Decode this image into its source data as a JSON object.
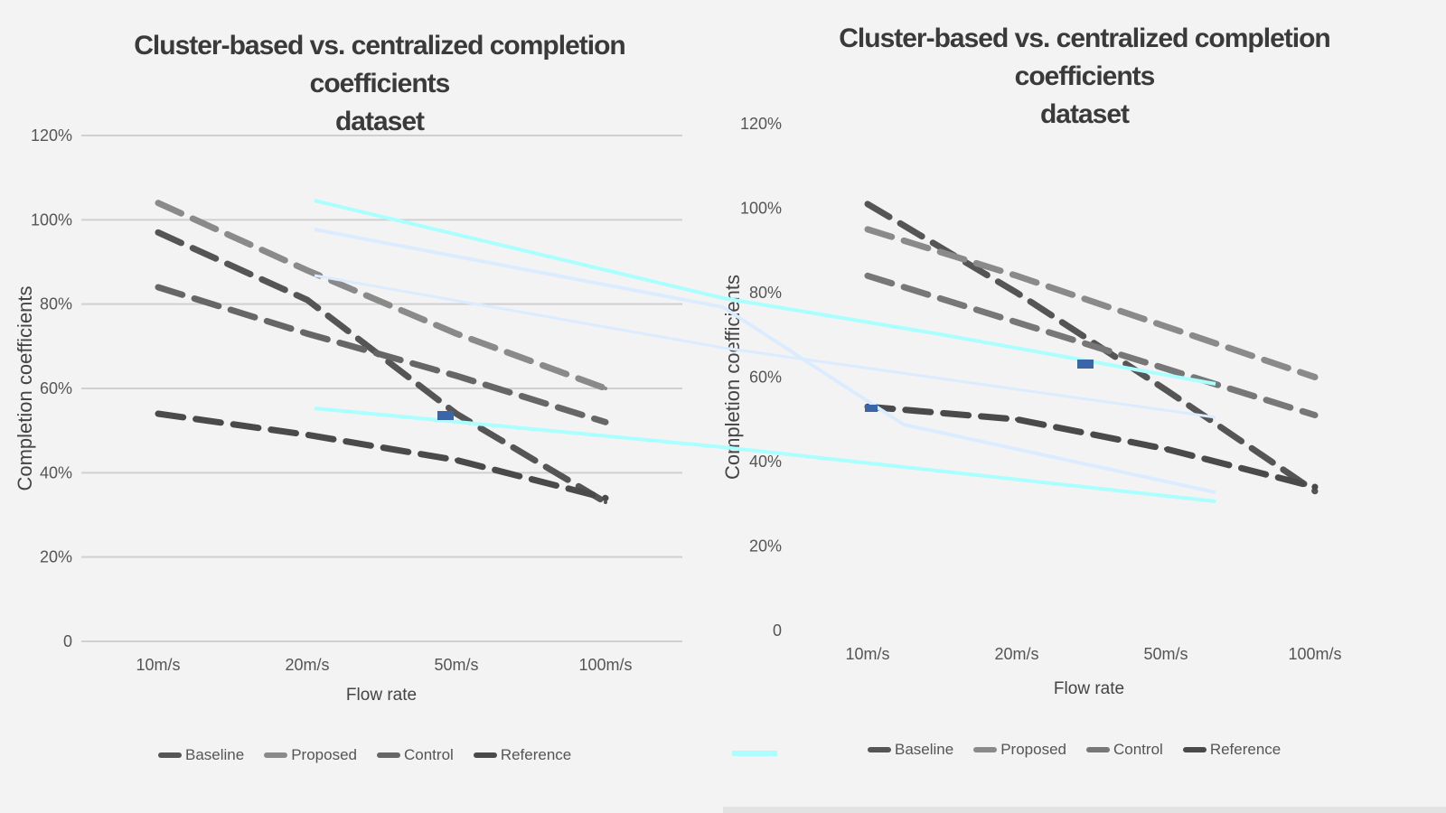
{
  "chart_data": [
    {
      "type": "line",
      "title": "Cluster-based vs. centralized completion coefficients",
      "subtitle": "dataset",
      "xlabel": "Flow rate",
      "ylabel": "Completion coefficients",
      "categories": [
        "10m/s",
        "20m/s",
        "50m/s",
        "100m/s"
      ],
      "yticks": [
        "0",
        "20%",
        "40%",
        "60%",
        "80%",
        "100%",
        "120%"
      ],
      "ylim": [
        0,
        120
      ],
      "grid": true,
      "legend_position": "bottom",
      "series": [
        {
          "name": "Baseline",
          "values": [
            97,
            81,
            54,
            33
          ],
          "color": "#555555",
          "style": "dashed"
        },
        {
          "name": "Proposed",
          "values": [
            104,
            88,
            73,
            60
          ],
          "color": "#8a8a8a",
          "style": "dashed"
        },
        {
          "name": "Control",
          "values": [
            84,
            73,
            63,
            52
          ],
          "color": "#666666",
          "style": "dashed"
        },
        {
          "name": "Reference",
          "values": [
            54,
            49,
            43,
            34
          ],
          "color": "#4a4a4a",
          "style": "dashed"
        }
      ]
    },
    {
      "type": "line",
      "title": "Cluster-based vs. centralized completion coefficients",
      "subtitle": "dataset",
      "xlabel": "Flow rate",
      "ylabel": "Completion coefficients",
      "categories": [
        "10m/s",
        "20m/s",
        "50m/s",
        "100m/s"
      ],
      "yticks": [
        "0",
        "20%",
        "40%",
        "60%",
        "80%",
        "100%",
        "120%"
      ],
      "ylim": [
        0,
        120
      ],
      "grid": false,
      "legend_position": "bottom",
      "series": [
        {
          "name": "Baseline",
          "values": [
            101,
            80,
            57,
            33
          ],
          "color": "#555555",
          "style": "dashed"
        },
        {
          "name": "Proposed",
          "values": [
            95,
            84,
            72,
            60
          ],
          "color": "#8a8a8a",
          "style": "dashed"
        },
        {
          "name": "Control",
          "values": [
            84,
            73,
            62,
            51
          ],
          "color": "#777777",
          "style": "dashed"
        },
        {
          "name": "Reference",
          "values": [
            53,
            50,
            43,
            34
          ],
          "color": "#4a4a4a",
          "style": "dashed"
        }
      ]
    }
  ],
  "accent_colors": {
    "cyan": "#aaffff",
    "pale_blue": "#dcecff",
    "marker_blue": "#3a66a8"
  }
}
